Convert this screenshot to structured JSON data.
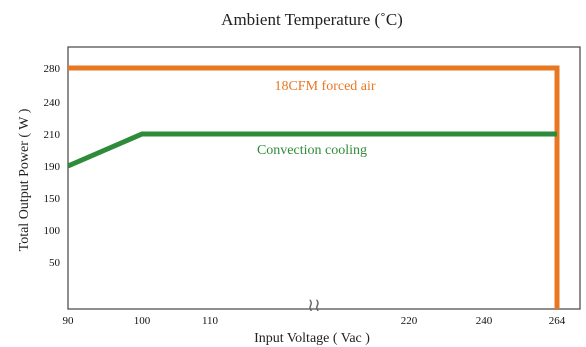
{
  "chart_data": {
    "type": "line",
    "title": "Ambient Temperature (˚C)",
    "xlabel": "Input Voltage ( Vac )",
    "ylabel": "Total Output Power ( W )",
    "xticks": [
      90,
      100,
      110,
      220,
      240,
      264
    ],
    "yticks": [
      50,
      100,
      150,
      190,
      210,
      240,
      280
    ],
    "axis_break_symbol": "≀≀",
    "grid": true,
    "series": [
      {
        "name": "18CFM forced air",
        "color": "#e87722",
        "points": [
          [
            90,
            280
          ],
          [
            264,
            280
          ],
          [
            264,
            0
          ]
        ]
      },
      {
        "name": "Convection cooling",
        "color": "#2e8b3a",
        "points": [
          [
            90,
            190
          ],
          [
            100,
            210
          ],
          [
            264,
            210
          ]
        ]
      }
    ]
  }
}
